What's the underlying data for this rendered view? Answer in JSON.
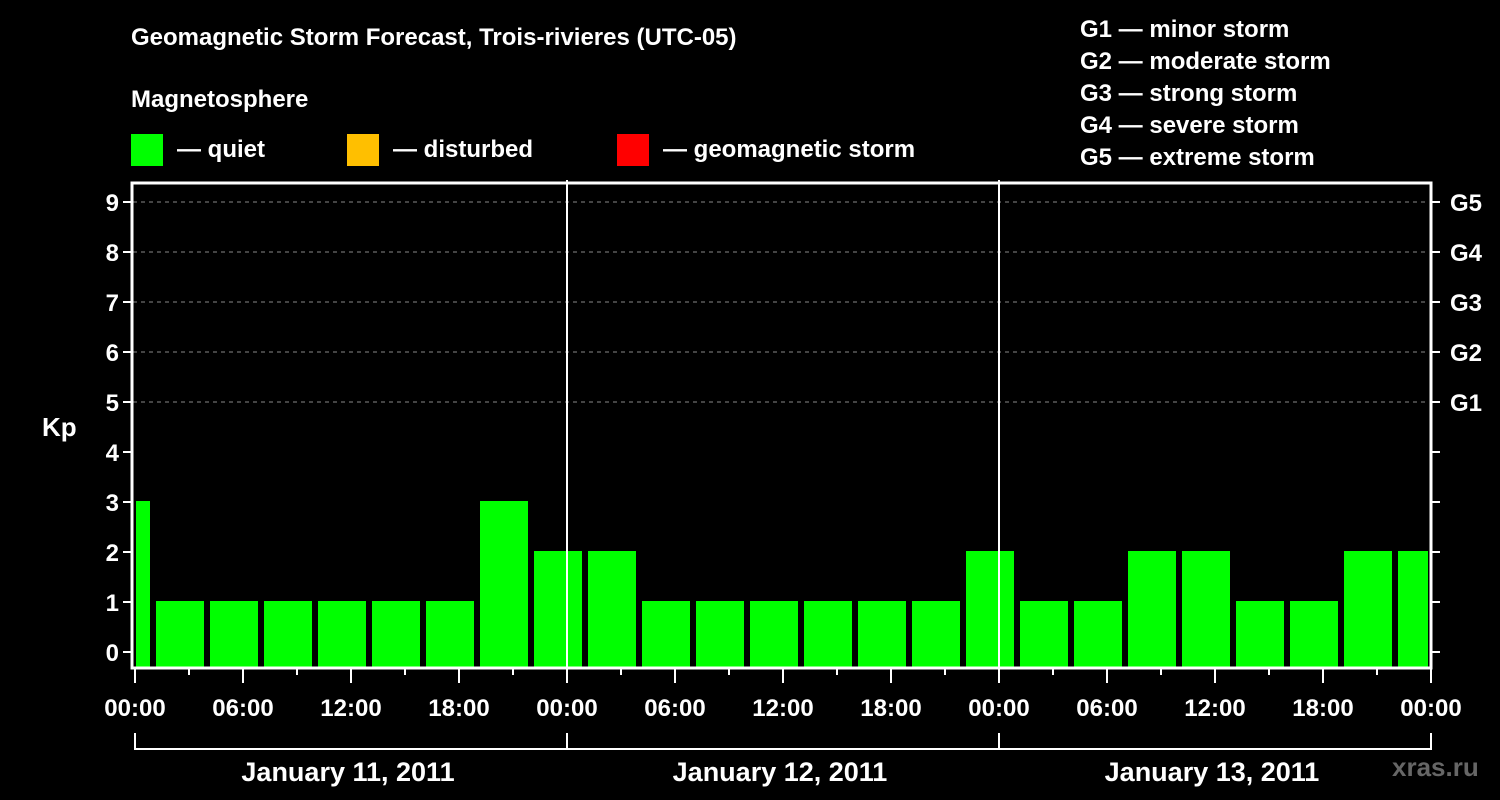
{
  "title": "Geomagnetic Storm Forecast, Trois-rivieres (UTC-05)",
  "subtitle": "Magnetosphere",
  "legend": [
    {
      "label": "— quiet",
      "color": "#00ff00"
    },
    {
      "label": "— disturbed",
      "color": "#ffbf00"
    },
    {
      "label": "— geomagnetic storm",
      "color": "#ff0000"
    }
  ],
  "g_scale": [
    "G1 — minor storm",
    "G2 — moderate storm",
    "G3 — strong storm",
    "G4 — severe storm",
    "G5 — extreme storm"
  ],
  "watermark": "xras.ru",
  "chart_data": {
    "type": "bar",
    "title": "Geomagnetic Storm Forecast, Trois-rivieres (UTC-05)",
    "ylabel": "Kp",
    "xlabel": "",
    "ylim": [
      0,
      9
    ],
    "yticks": [
      0,
      1,
      2,
      3,
      4,
      5,
      6,
      7,
      8,
      9
    ],
    "right_axis_labels": {
      "5": "G1",
      "6": "G2",
      "7": "G3",
      "8": "G4",
      "9": "G5"
    },
    "grid": "dashed horizontal lines at Kp 5-9",
    "x_tick_labels": [
      "00:00",
      "06:00",
      "12:00",
      "18:00",
      "00:00",
      "06:00",
      "12:00",
      "18:00",
      "00:00",
      "06:00",
      "12:00",
      "18:00",
      "00:00"
    ],
    "dates": [
      "January 11, 2011",
      "January 12, 2011",
      "January 13, 2011"
    ],
    "bar_interval_hours": 3,
    "categories": [
      "Jan 11 ~22:00 (prev, partial)",
      "Jan 11 00-03",
      "Jan 11 03-06",
      "Jan 11 06-09",
      "Jan 11 09-12",
      "Jan 11 12-15",
      "Jan 11 15-18",
      "Jan 11 18-21",
      "Jan 11 21-24",
      "Jan 12 00-03",
      "Jan 12 03-06",
      "Jan 12 06-09",
      "Jan 12 09-12",
      "Jan 12 12-15",
      "Jan 12 15-18",
      "Jan 12 18-21",
      "Jan 12 21-24",
      "Jan 13 00-03",
      "Jan 13 03-06",
      "Jan 13 06-09",
      "Jan 13 09-12",
      "Jan 13 12-15",
      "Jan 13 15-18",
      "Jan 13 18-21",
      "Jan 13 21-24 (partial)"
    ],
    "values": [
      3,
      1,
      1,
      1,
      1,
      1,
      1,
      3,
      2,
      2,
      1,
      1,
      1,
      1,
      1,
      1,
      2,
      1,
      1,
      2,
      2,
      1,
      1,
      2,
      2
    ],
    "status": "quiet",
    "bar_color": "#00ff00"
  }
}
